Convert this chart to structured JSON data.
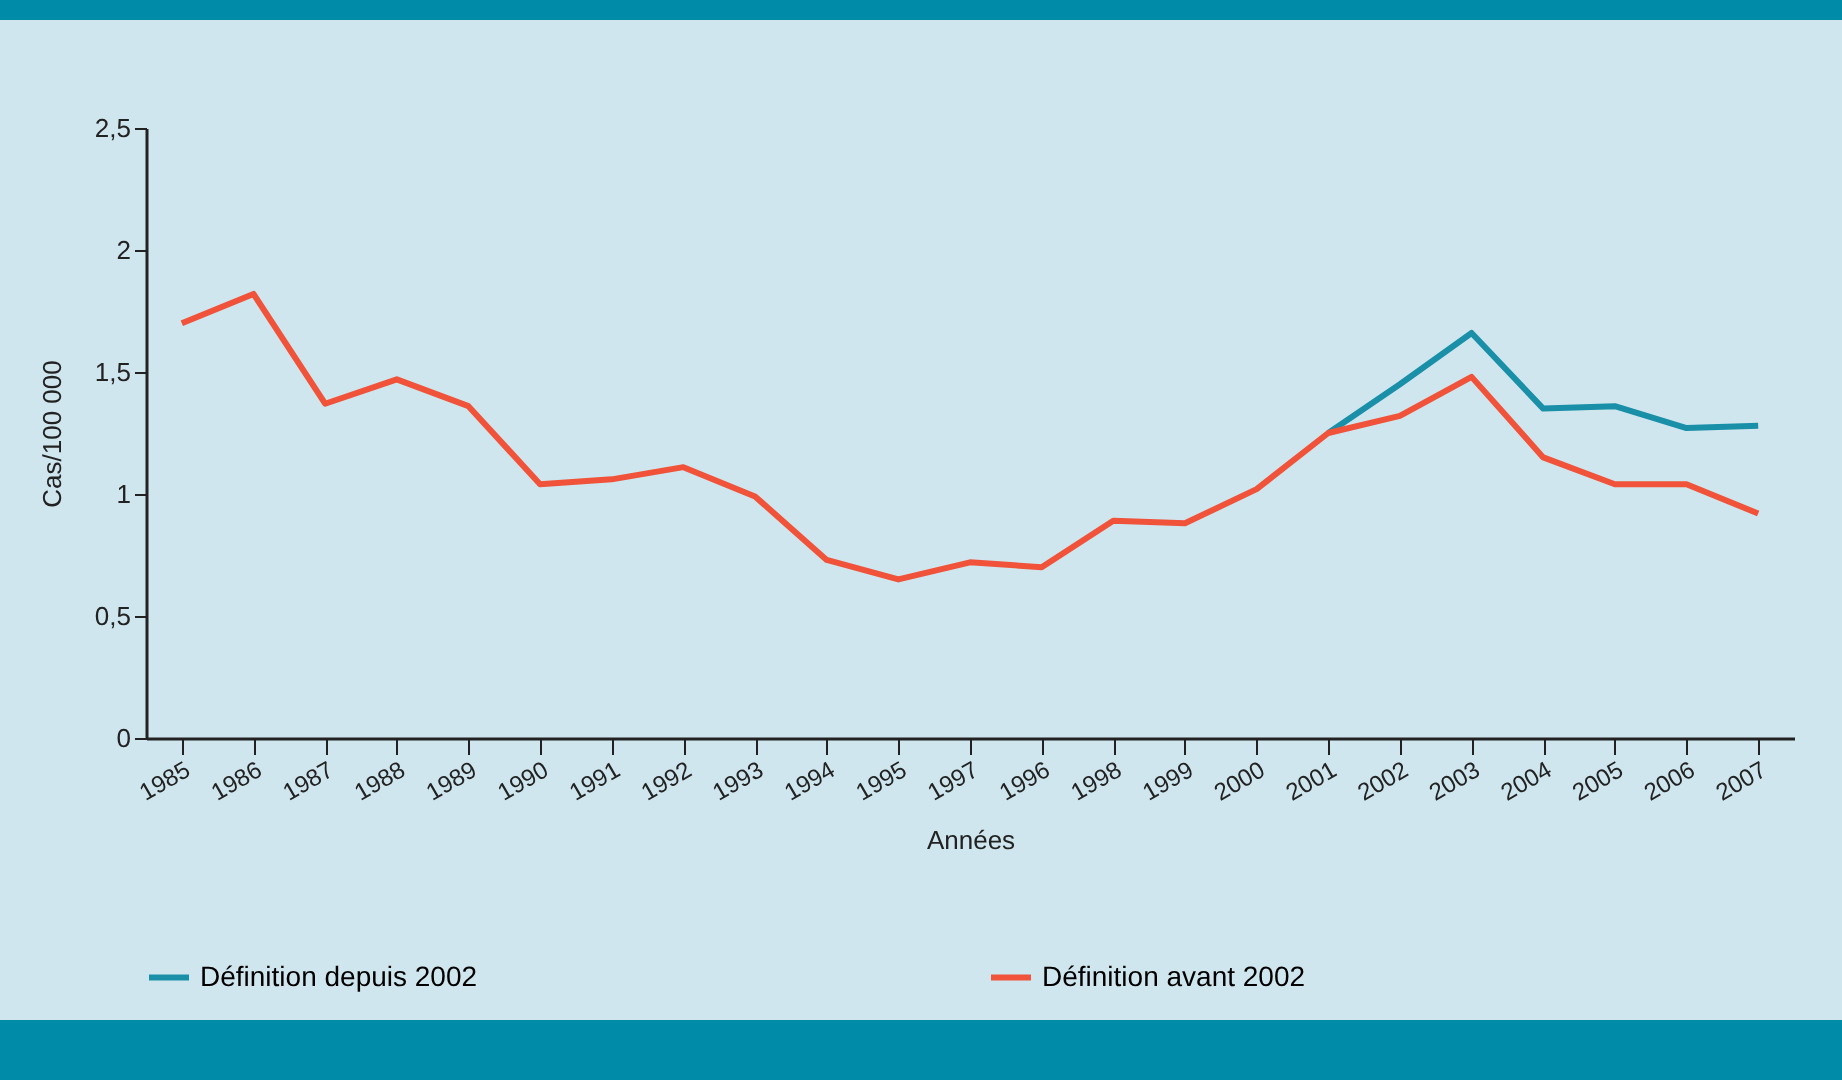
{
  "chart_data": {
    "type": "line",
    "xlabel": "Années",
    "ylabel": "Cas/100 000",
    "categories": [
      "1985",
      "1986",
      "1987",
      "1988",
      "1989",
      "1990",
      "1991",
      "1992",
      "1993",
      "1994",
      "1995",
      "1997",
      "1996",
      "1998",
      "1999",
      "2000",
      "2001",
      "2002",
      "2003",
      "2004",
      "2005",
      "2006",
      "2007"
    ],
    "series": [
      {
        "name": "Définition depuis 2002",
        "color": "#1a8fa8",
        "values": [
          null,
          null,
          null,
          null,
          null,
          null,
          null,
          null,
          null,
          null,
          null,
          null,
          null,
          null,
          null,
          null,
          1.25,
          1.45,
          1.66,
          1.35,
          1.36,
          1.27,
          1.28
        ]
      },
      {
        "name": "Définition avant 2002",
        "color": "#f0533a",
        "values": [
          1.7,
          1.82,
          1.37,
          1.47,
          1.36,
          1.04,
          1.06,
          1.11,
          0.99,
          0.73,
          0.65,
          0.72,
          0.7,
          0.89,
          0.88,
          1.02,
          1.25,
          1.32,
          1.48,
          1.15,
          1.04,
          1.04,
          0.92
        ]
      }
    ],
    "ylim": [
      0,
      2.5
    ],
    "yticks": [
      0,
      {
        "value": 0.5,
        "label": "0,5"
      },
      1,
      {
        "value": 1.5,
        "label": "1,5"
      },
      2,
      {
        "value": 2.5,
        "label": "2,5"
      }
    ],
    "grid": false,
    "legend": "bottom",
    "line_style": "solid",
    "marker": "none"
  }
}
